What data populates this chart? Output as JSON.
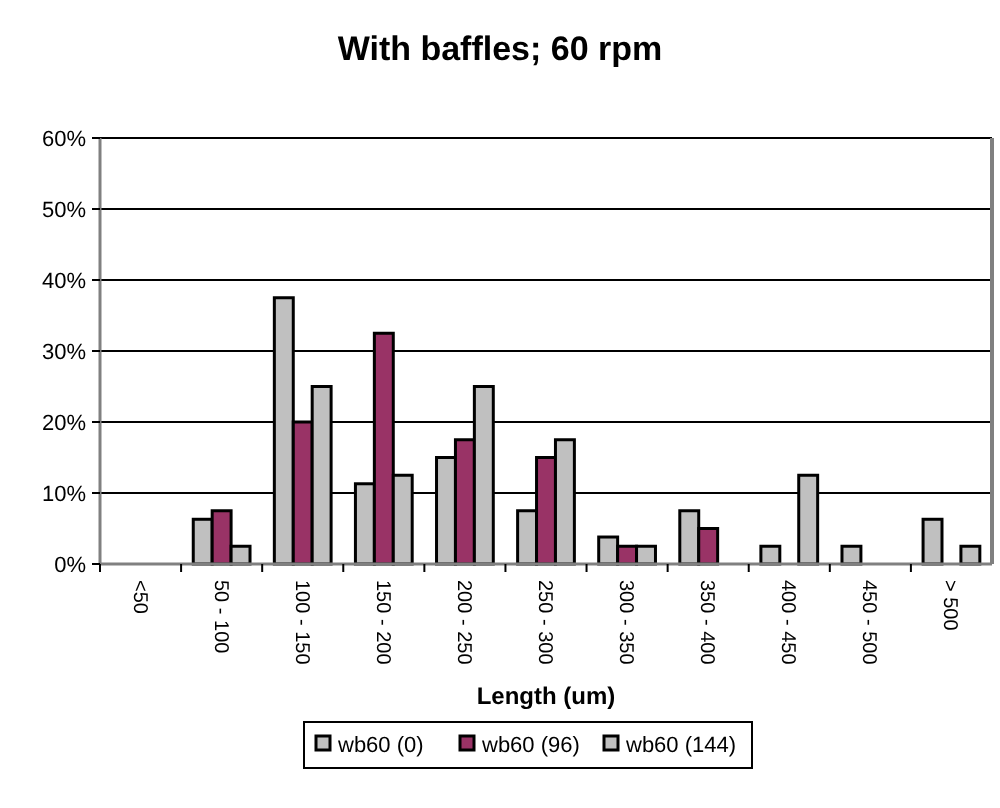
{
  "chart_data": {
    "type": "bar",
    "title": "With baffles; 60 rpm",
    "xlabel": "Length (um)",
    "categories": [
      "<50",
      "50 - 100",
      "100 - 150",
      "150 - 200",
      "200 - 250",
      "250 - 300",
      "300 - 350",
      "350 - 400",
      "400 - 450",
      "450 - 500",
      "> 500"
    ],
    "series": [
      {
        "name": "wb60 (0)",
        "color": "#c0c0c0",
        "values": [
          0,
          0.063,
          0.375,
          0.113,
          0.15,
          0.075,
          0.038,
          0.075,
          0.025,
          0.025,
          0.063
        ]
      },
      {
        "name": "wb60 (96)",
        "color": "#993366",
        "values": [
          0,
          0.075,
          0.2,
          0.325,
          0.175,
          0.15,
          0.025,
          0.05,
          0,
          0,
          0
        ]
      },
      {
        "name": "wb60 (144)",
        "color": "#c0c0c0",
        "values": [
          0,
          0.025,
          0.25,
          0.125,
          0.25,
          0.175,
          0.025,
          0,
          0.125,
          0,
          0.025
        ]
      }
    ],
    "ylim": [
      0,
      0.6
    ],
    "yticks": [
      {
        "value": 0,
        "label": "0%"
      },
      {
        "value": 0.1,
        "label": "10%"
      },
      {
        "value": 0.2,
        "label": "20%"
      },
      {
        "value": 0.3,
        "label": "30%"
      },
      {
        "value": 0.4,
        "label": "40%"
      },
      {
        "value": 0.5,
        "label": "50%"
      },
      {
        "value": 0.6,
        "label": "60%"
      }
    ],
    "grid": "y",
    "legend": "bottom"
  }
}
